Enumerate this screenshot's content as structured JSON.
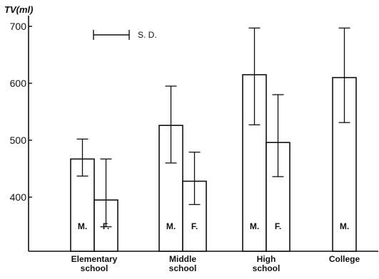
{
  "chart_data": {
    "type": "bar",
    "ylabel": "TV(ml)",
    "ylim": [
      330,
      710
    ],
    "yticks": [
      400,
      500,
      600,
      700
    ],
    "yticklabels": [
      "400",
      "500",
      "600",
      "700"
    ],
    "legend": {
      "text": "S. D.",
      "placement": "top-left"
    },
    "groups": [
      {
        "label_lines": [
          "Elementary",
          "school"
        ],
        "bars": [
          {
            "label": "M.",
            "value": 467,
            "sd_low": 437,
            "sd_high": 502
          },
          {
            "label": "F.",
            "value": 395,
            "sd_low": 348,
            "sd_high": 467
          }
        ]
      },
      {
        "label_lines": [
          "Middle",
          "school"
        ],
        "bars": [
          {
            "label": "M.",
            "value": 526,
            "sd_low": 460,
            "sd_high": 595
          },
          {
            "label": "F.",
            "value": 428,
            "sd_low": 387,
            "sd_high": 479
          }
        ]
      },
      {
        "label_lines": [
          "High",
          "school"
        ],
        "bars": [
          {
            "label": "M.",
            "value": 615,
            "sd_low": 527,
            "sd_high": 697
          },
          {
            "label": "F.",
            "value": 496,
            "sd_low": 436,
            "sd_high": 580
          }
        ]
      },
      {
        "label_lines": [
          "College"
        ],
        "bars": [
          {
            "label": "M.",
            "value": 610,
            "sd_low": 531,
            "sd_high": 697
          }
        ]
      }
    ]
  }
}
